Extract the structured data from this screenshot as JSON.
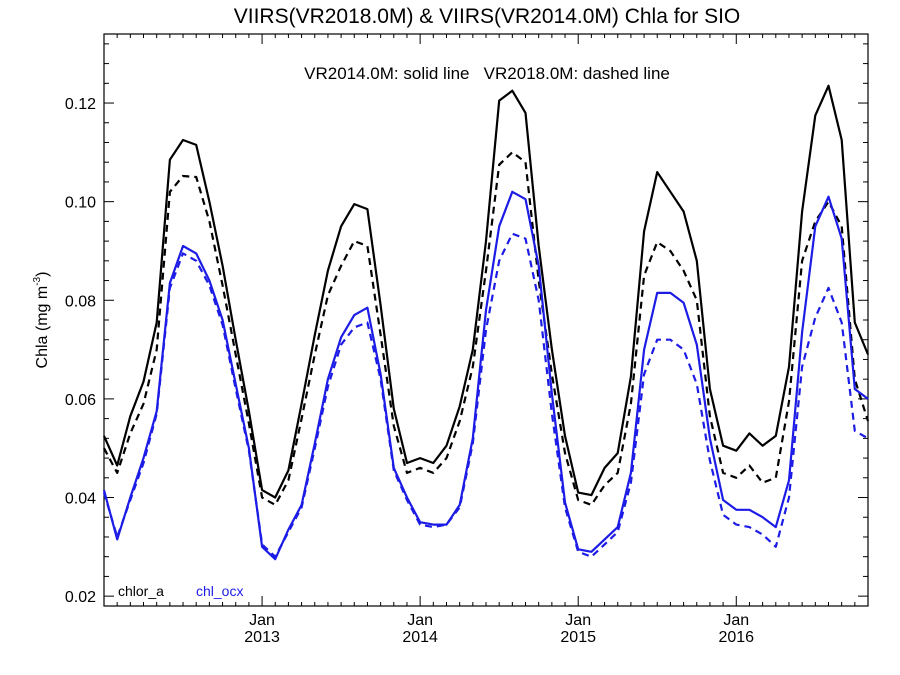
{
  "chart_data": {
    "type": "line",
    "title": "VIIRS(VR2018.0M) & VIIRS(VR2014.0M)  Chla for SIO",
    "annotation": "VR2014.0M: solid line   VR2018.0M: dashed line",
    "ylabel": "Chla (mg m",
    "ylabel_sup": "-3",
    "ylabel_close": ")",
    "ylim": [
      0.018,
      0.134
    ],
    "xlim": [
      0,
      58
    ],
    "x_month_index_note": "",
    "yticks": [
      0.02,
      0.04,
      0.06,
      0.08,
      0.1,
      0.12
    ],
    "ytick_labels": [
      "0.02",
      "0.04",
      "0.06",
      "0.08",
      "0.10",
      "0.12"
    ],
    "xticks": [
      {
        "pos": 12,
        "month": "Jan",
        "year": "2013"
      },
      {
        "pos": 24,
        "month": "Jan",
        "year": "2014"
      },
      {
        "pos": 36,
        "month": "Jan",
        "year": "2015"
      },
      {
        "pos": 48,
        "month": "Jan",
        "year": "2016"
      }
    ],
    "legend": {
      "placement": "bottom-left",
      "items": [
        "chlor_a",
        "chl_ocx"
      ]
    },
    "colors": {
      "chlor_a": "#000000",
      "chl_ocx": "#1c1ce6"
    },
    "series": [
      {
        "name": "chlor_a",
        "version": "VR2014.0M",
        "style": "solid",
        "color": "#000000",
        "x": [
          0,
          1,
          2,
          3,
          4,
          5,
          6,
          7,
          8,
          9,
          10,
          11,
          12,
          13,
          14,
          15,
          16,
          17,
          18,
          19,
          20,
          21,
          22,
          23,
          24,
          25,
          26,
          27,
          28,
          29,
          30,
          31,
          32,
          33,
          34,
          35,
          36,
          37,
          38,
          39,
          40,
          41,
          42,
          43,
          44,
          45,
          46,
          47,
          48,
          49,
          50,
          51,
          52,
          53,
          54,
          55,
          56,
          57,
          58
        ],
        "y": [
          0.0525,
          0.0465,
          0.0565,
          0.0635,
          0.0755,
          0.1085,
          0.1125,
          0.1115,
          0.1,
          0.087,
          0.072,
          0.0575,
          0.0415,
          0.04,
          0.0455,
          0.059,
          0.073,
          0.086,
          0.095,
          0.0995,
          0.0985,
          0.079,
          0.058,
          0.047,
          0.048,
          0.047,
          0.0505,
          0.0585,
          0.07,
          0.092,
          0.1205,
          0.1225,
          0.118,
          0.091,
          0.07,
          0.0525,
          0.041,
          0.0405,
          0.046,
          0.049,
          0.0645,
          0.094,
          0.106,
          0.102,
          0.098,
          0.088,
          0.062,
          0.0505,
          0.0495,
          0.053,
          0.0505,
          0.0525,
          0.0665,
          0.098,
          0.1175,
          0.1235,
          0.1125,
          0.0755,
          0.069
        ]
      },
      {
        "name": "chlor_a",
        "version": "VR2018.0M",
        "style": "dashed",
        "color": "#000000",
        "x": [
          0,
          1,
          2,
          3,
          4,
          5,
          6,
          7,
          8,
          9,
          10,
          11,
          12,
          13,
          14,
          15,
          16,
          17,
          18,
          19,
          20,
          21,
          22,
          23,
          24,
          25,
          26,
          27,
          28,
          29,
          30,
          31,
          32,
          33,
          34,
          35,
          36,
          37,
          38,
          39,
          40,
          41,
          42,
          43,
          44,
          45,
          46,
          47,
          48,
          49,
          50,
          51,
          52,
          53,
          54,
          55,
          56,
          57,
          58
        ],
        "y": [
          0.05,
          0.045,
          0.053,
          0.059,
          0.07,
          0.102,
          0.1052,
          0.105,
          0.096,
          0.083,
          0.069,
          0.055,
          0.04,
          0.0385,
          0.0435,
          0.056,
          0.069,
          0.081,
          0.087,
          0.092,
          0.091,
          0.073,
          0.0545,
          0.045,
          0.046,
          0.045,
          0.048,
          0.0555,
          0.0665,
          0.086,
          0.1075,
          0.11,
          0.108,
          0.084,
          0.065,
          0.049,
          0.0395,
          0.0385,
          0.0425,
          0.045,
          0.059,
          0.085,
          0.0918,
          0.09,
          0.086,
          0.08,
          0.0565,
          0.045,
          0.044,
          0.0465,
          0.043,
          0.044,
          0.0595,
          0.088,
          0.096,
          0.1,
          0.095,
          0.064,
          0.0555
        ]
      },
      {
        "name": "chl_ocx",
        "version": "VR2014.0M",
        "style": "solid",
        "color": "#1c1ce6",
        "x": [
          0,
          1,
          2,
          3,
          4,
          5,
          6,
          7,
          8,
          9,
          10,
          11,
          12,
          13,
          14,
          15,
          16,
          17,
          18,
          19,
          20,
          21,
          22,
          23,
          24,
          25,
          26,
          27,
          28,
          29,
          30,
          31,
          32,
          33,
          34,
          35,
          36,
          37,
          38,
          39,
          40,
          41,
          42,
          43,
          44,
          45,
          46,
          47,
          48,
          49,
          50,
          51,
          52,
          53,
          54,
          55,
          56,
          57,
          58
        ],
        "y": [
          0.0415,
          0.0315,
          0.04,
          0.048,
          0.0575,
          0.0835,
          0.091,
          0.0895,
          0.084,
          0.076,
          0.063,
          0.05,
          0.03,
          0.0275,
          0.0335,
          0.0385,
          0.051,
          0.064,
          0.0725,
          0.077,
          0.0785,
          0.065,
          0.046,
          0.04,
          0.035,
          0.0345,
          0.0345,
          0.0385,
          0.052,
          0.078,
          0.095,
          0.102,
          0.1005,
          0.087,
          0.061,
          0.039,
          0.0295,
          0.029,
          0.0315,
          0.034,
          0.045,
          0.07,
          0.0815,
          0.0815,
          0.0795,
          0.071,
          0.052,
          0.0395,
          0.0375,
          0.0375,
          0.036,
          0.034,
          0.0435,
          0.0735,
          0.095,
          0.101,
          0.0925,
          0.062,
          0.06
        ]
      },
      {
        "name": "chl_ocx",
        "version": "VR2018.0M",
        "style": "dashed",
        "color": "#1c1ce6",
        "x": [
          0,
          1,
          2,
          3,
          4,
          5,
          6,
          7,
          8,
          9,
          10,
          11,
          12,
          13,
          14,
          15,
          16,
          17,
          18,
          19,
          20,
          21,
          22,
          23,
          24,
          25,
          26,
          27,
          28,
          29,
          30,
          31,
          32,
          33,
          34,
          35,
          36,
          37,
          38,
          39,
          40,
          41,
          42,
          43,
          44,
          45,
          46,
          47,
          48,
          49,
          50,
          51,
          52,
          53,
          54,
          55,
          56,
          57,
          58
        ],
        "y": [
          0.041,
          0.032,
          0.0395,
          0.047,
          0.057,
          0.0825,
          0.0895,
          0.088,
          0.083,
          0.075,
          0.062,
          0.0495,
          0.0305,
          0.028,
          0.033,
          0.038,
          0.05,
          0.0625,
          0.071,
          0.0745,
          0.0755,
          0.064,
          0.0455,
          0.0395,
          0.0345,
          0.034,
          0.0345,
          0.038,
          0.051,
          0.074,
          0.088,
          0.0935,
          0.0925,
          0.08,
          0.057,
          0.038,
          0.029,
          0.028,
          0.0305,
          0.033,
          0.043,
          0.065,
          0.072,
          0.072,
          0.07,
          0.063,
          0.0475,
          0.0365,
          0.0345,
          0.034,
          0.0325,
          0.03,
          0.04,
          0.0665,
          0.0765,
          0.0825,
          0.0755,
          0.0535,
          0.052
        ]
      }
    ]
  }
}
